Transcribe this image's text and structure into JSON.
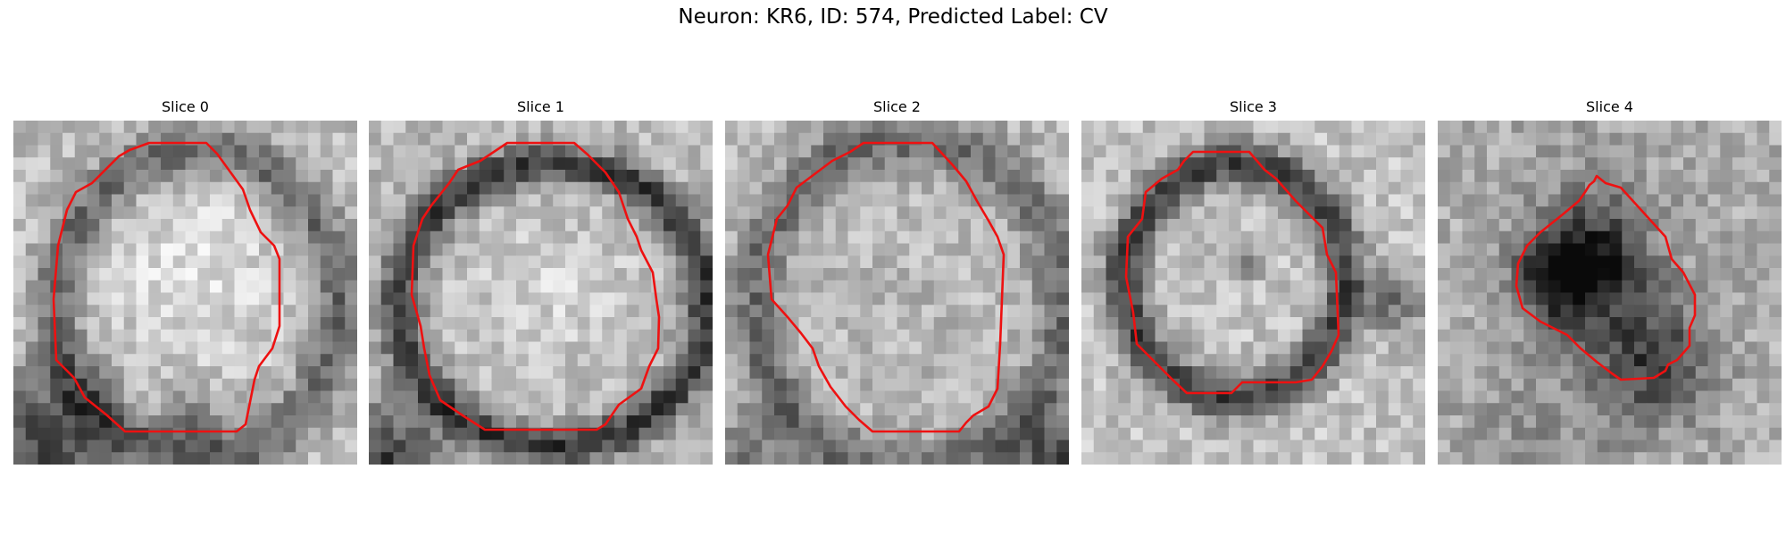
{
  "figure": {
    "title": "Neuron: KR6, ID: 574, Predicted Label: CV"
  },
  "panels": [
    {
      "title": "Slice 0"
    },
    {
      "title": "Slice 1"
    },
    {
      "title": "Slice 2"
    },
    {
      "title": "Slice 3"
    },
    {
      "title": "Slice 4"
    }
  ],
  "colors": {
    "contour": "#ee1111",
    "background": "#ffffff"
  }
}
